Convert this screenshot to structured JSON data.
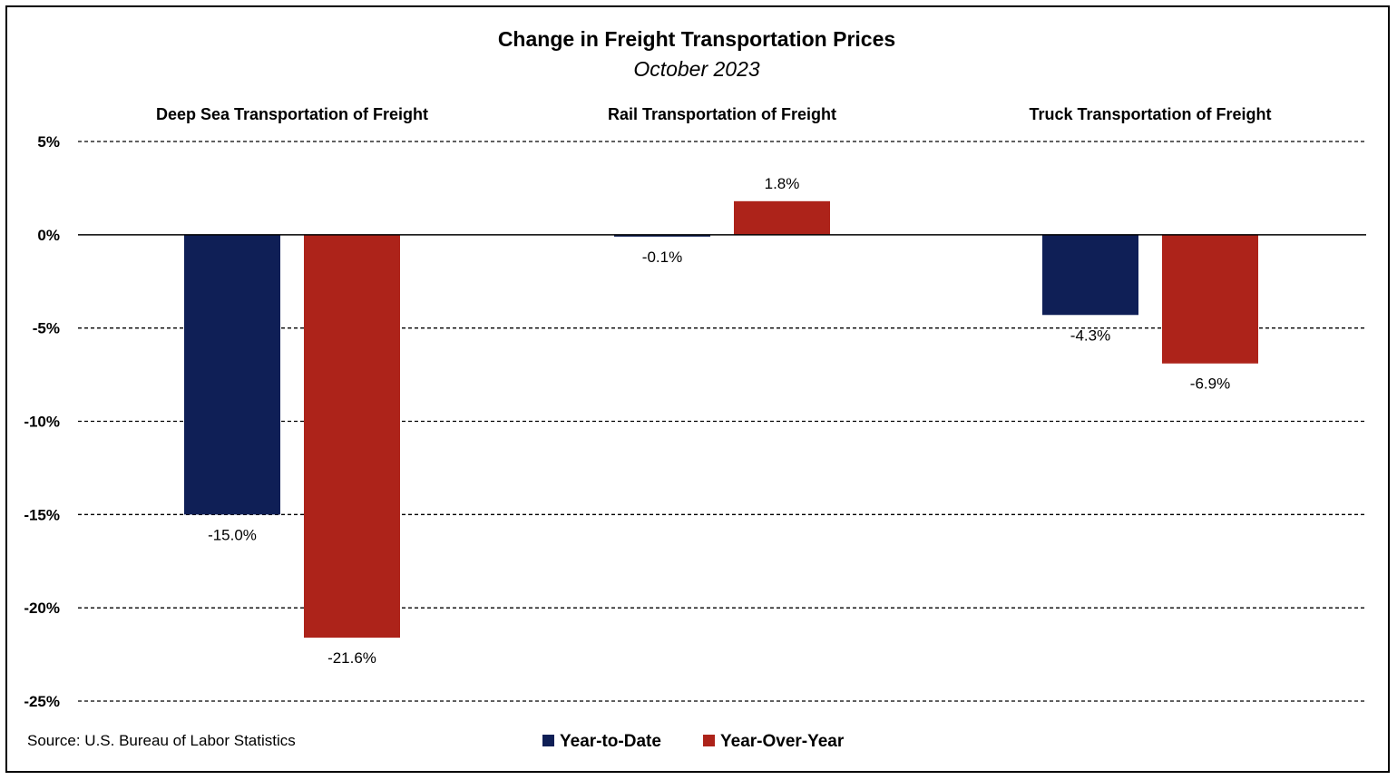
{
  "chart_data": {
    "type": "bar",
    "title": "Change in Freight Transportation Prices",
    "subtitle": "October 2023",
    "categories": [
      "Deep Sea Transportation of Freight",
      "Rail Transportation of Freight",
      "Truck Transportation of Freight"
    ],
    "series": [
      {
        "name": "Year-to-Date",
        "color": "#0f1f56",
        "values": [
          -15.0,
          -0.1,
          -4.3
        ],
        "labels": [
          "-15.0%",
          "-0.1%",
          "-4.3%"
        ]
      },
      {
        "name": "Year-Over-Year",
        "color": "#ad231a",
        "values": [
          -21.6,
          1.8,
          -6.9
        ],
        "labels": [
          "-21.6%",
          "1.8%",
          "-6.9%"
        ]
      }
    ],
    "ylim": [
      -25,
      5
    ],
    "yticks": [
      5,
      0,
      -5,
      -10,
      -15,
      -20,
      -25
    ],
    "ytick_labels": [
      "5%",
      "0%",
      "-5%",
      "-10%",
      "-15%",
      "-20%",
      "-25%"
    ],
    "grid": true,
    "legend_position": "bottom-center",
    "category_label_position": "top",
    "source": "Source: U.S. Bureau of Labor Statistics"
  }
}
